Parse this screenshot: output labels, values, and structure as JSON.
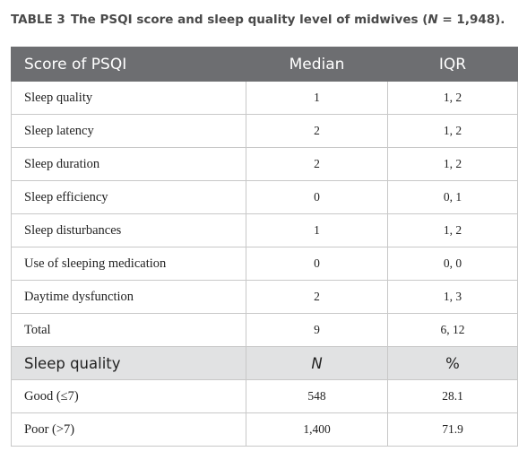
{
  "caption": {
    "label": "TABLE 3",
    "text_before": "The PSQI score and sleep quality level of midwives (",
    "italic": "N",
    "text_after": " = 1,948)."
  },
  "table": {
    "header": [
      "Score of PSQI",
      "Median",
      "IQR"
    ],
    "rows": [
      [
        "Sleep quality",
        "1",
        "1, 2"
      ],
      [
        "Sleep latency",
        "2",
        "1, 2"
      ],
      [
        "Sleep duration",
        "2",
        "1, 2"
      ],
      [
        "Sleep efficiency",
        "0",
        "0, 1"
      ],
      [
        "Sleep disturbances",
        "1",
        "1, 2"
      ],
      [
        "Use of sleeping medication",
        "0",
        "0, 0"
      ],
      [
        "Daytime dysfunction",
        "2",
        "1, 3"
      ],
      [
        "Total",
        "9",
        "6, 12"
      ]
    ],
    "subheader": [
      "Sleep quality",
      "N",
      "%"
    ],
    "rows2": [
      [
        "Good (≤7)",
        "548",
        "28.1"
      ],
      [
        "Poor (>7)",
        "1,400",
        "71.9"
      ]
    ]
  }
}
